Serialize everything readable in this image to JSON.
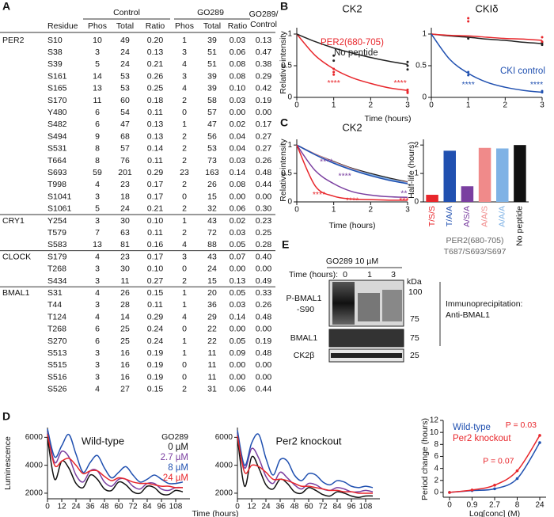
{
  "panel_labels": [
    "A",
    "B",
    "C",
    "D",
    "E"
  ],
  "table": {
    "header": {
      "control": "Control",
      "go289": "GO289",
      "ratio_header": [
        "GO289/",
        "Control"
      ],
      "columns": [
        "Residue",
        "Phos",
        "Total",
        "Ratio",
        "Phos",
        "Total",
        "Ratio"
      ]
    },
    "groups": [
      {
        "name": "PER2",
        "rows": [
          [
            "S10",
            "10",
            "49",
            "0.20",
            "1",
            "39",
            "0.03",
            "0.13"
          ],
          [
            "S38",
            "3",
            "24",
            "0.13",
            "3",
            "51",
            "0.06",
            "0.47"
          ],
          [
            "S39",
            "5",
            "24",
            "0.21",
            "4",
            "51",
            "0.08",
            "0.38"
          ],
          [
            "S161",
            "14",
            "53",
            "0.26",
            "3",
            "39",
            "0.08",
            "0.29"
          ],
          [
            "S165",
            "13",
            "53",
            "0.25",
            "4",
            "39",
            "0.10",
            "0.42"
          ],
          [
            "S170",
            "11",
            "60",
            "0.18",
            "2",
            "58",
            "0.03",
            "0.19"
          ],
          [
            "Y480",
            "6",
            "54",
            "0.11",
            "0",
            "57",
            "0.00",
            "0.00"
          ],
          [
            "S482",
            "6",
            "47",
            "0.13",
            "1",
            "47",
            "0.02",
            "0.17"
          ],
          [
            "S494",
            "9",
            "68",
            "0.13",
            "2",
            "56",
            "0.04",
            "0.27"
          ],
          [
            "S531",
            "8",
            "57",
            "0.14",
            "2",
            "53",
            "0.04",
            "0.27"
          ],
          [
            "T664",
            "8",
            "76",
            "0.11",
            "2",
            "73",
            "0.03",
            "0.26"
          ],
          [
            "S693",
            "59",
            "201",
            "0.29",
            "23",
            "163",
            "0.14",
            "0.48"
          ],
          [
            "T998",
            "4",
            "23",
            "0.17",
            "2",
            "26",
            "0.08",
            "0.44"
          ],
          [
            "S1041",
            "3",
            "18",
            "0.17",
            "0",
            "15",
            "0.00",
            "0.00"
          ],
          [
            "S1061",
            "5",
            "24",
            "0.21",
            "2",
            "32",
            "0.06",
            "0.30"
          ]
        ]
      },
      {
        "name": "CRY1",
        "rows": [
          [
            "Y254",
            "3",
            "30",
            "0.10",
            "1",
            "43",
            "0.02",
            "0.23"
          ],
          [
            "T579",
            "7",
            "63",
            "0.11",
            "2",
            "72",
            "0.03",
            "0.25"
          ],
          [
            "S583",
            "13",
            "81",
            "0.16",
            "4",
            "88",
            "0.05",
            "0.28"
          ]
        ]
      },
      {
        "name": "CLOCK",
        "rows": [
          [
            "S179",
            "4",
            "23",
            "0.17",
            "3",
            "43",
            "0.07",
            "0.40"
          ],
          [
            "T268",
            "3",
            "30",
            "0.10",
            "0",
            "24",
            "0.00",
            "0.00"
          ],
          [
            "S434",
            "3",
            "11",
            "0.27",
            "2",
            "15",
            "0.13",
            "0.49"
          ]
        ]
      },
      {
        "name": "BMAL1",
        "rows": [
          [
            "S31",
            "4",
            "26",
            "0.15",
            "1",
            "20",
            "0.05",
            "0.33"
          ],
          [
            "T44",
            "3",
            "28",
            "0.11",
            "1",
            "36",
            "0.03",
            "0.26"
          ],
          [
            "T124",
            "4",
            "14",
            "0.29",
            "4",
            "29",
            "0.14",
            "0.48"
          ],
          [
            "T268",
            "6",
            "25",
            "0.24",
            "0",
            "22",
            "0.00",
            "0.00"
          ],
          [
            "S270",
            "6",
            "25",
            "0.24",
            "1",
            "22",
            "0.05",
            "0.19"
          ],
          [
            "S513",
            "3",
            "16",
            "0.19",
            "1",
            "11",
            "0.09",
            "0.48"
          ],
          [
            "S515",
            "3",
            "16",
            "0.19",
            "0",
            "11",
            "0.00",
            "0.00"
          ],
          [
            "S516",
            "3",
            "16",
            "0.19",
            "0",
            "11",
            "0.00",
            "0.00"
          ],
          [
            "S526",
            "4",
            "27",
            "0.15",
            "2",
            "31",
            "0.06",
            "0.44"
          ]
        ]
      }
    ]
  },
  "blot": {
    "treatment": "GO289 10 µM",
    "time_label": "Time (hours):",
    "lanes": [
      "0",
      "1",
      "3"
    ],
    "units": "kDa",
    "rows": [
      {
        "name": [
          "P-BMAL1",
          "-S90"
        ],
        "markers": [
          "100",
          "75"
        ]
      },
      {
        "name": [
          "BMAL1"
        ],
        "markers": [
          "75"
        ]
      },
      {
        "name": [
          "CK2β"
        ],
        "markers": [
          "25"
        ]
      }
    ],
    "note": [
      "Immunoprecipitation:",
      "Anti-BMAL1"
    ]
  },
  "chart_data": [
    {
      "type": "line",
      "title": "CK2",
      "xlabel": "Time (hours)",
      "ylabel": "Relative intensity",
      "x": [
        0,
        0.5,
        1,
        1.5,
        2,
        2.5,
        3
      ],
      "xlim": [
        0,
        3
      ],
      "xticks": [
        0,
        1,
        2,
        3
      ],
      "ylim": [
        0,
        1.1
      ],
      "yticks": [
        0,
        0.5,
        1
      ],
      "series": [
        {
          "name": "PER2(680-705)",
          "color": "#e8262b",
          "values": [
            1,
            0.66,
            0.45,
            0.31,
            0.22,
            0.15,
            0.11
          ],
          "points": {
            "x": [
              1,
              1,
              1,
              3,
              3,
              3
            ],
            "y": [
              0.45,
              0.4,
              0.36,
              0.12,
              0.09,
              0.07
            ]
          }
        },
        {
          "name": "No peptide",
          "color": "#222222",
          "values": [
            1,
            0.88,
            0.78,
            0.7,
            0.63,
            0.57,
            0.52
          ],
          "points": {
            "x": [
              1,
              1,
              3,
              3,
              3
            ],
            "y": [
              0.66,
              0.58,
              0.56,
              0.5,
              0.44
            ]
          }
        }
      ],
      "annotations": [
        {
          "text": "****",
          "color": "#e8262b",
          "x": 1,
          "y": 0.22
        },
        {
          "text": "****",
          "color": "#e8262b",
          "x": 2.8,
          "y": 0.22
        }
      ]
    },
    {
      "type": "line",
      "title": "CKIδ",
      "x": [
        0,
        0.5,
        1,
        1.5,
        2,
        2.5,
        3
      ],
      "xlim": [
        0,
        3
      ],
      "xticks": [
        0,
        1,
        2,
        3
      ],
      "ylim": [
        0,
        1.1
      ],
      "yticks": [
        0,
        0.5,
        1
      ],
      "series": [
        {
          "color": "#222222",
          "values": [
            1,
            0.97,
            0.95,
            0.92,
            0.9,
            0.87,
            0.85
          ],
          "points": {
            "x": [
              1,
              3,
              3
            ],
            "y": [
              0.93,
              0.86,
              0.83
            ]
          }
        },
        {
          "color": "#e8262b",
          "values": [
            1,
            0.98,
            0.97,
            0.95,
            0.93,
            0.92,
            0.9
          ],
          "points": {
            "x": [
              1,
              1,
              3,
              3
            ],
            "y": [
              1.25,
              1.2,
              0.95,
              0.88
            ]
          }
        },
        {
          "name": "CKI control",
          "color": "#2050b0",
          "values": [
            1,
            0.6,
            0.38,
            0.24,
            0.16,
            0.11,
            0.08
          ],
          "points": {
            "x": [
              1,
              1,
              3,
              3
            ],
            "y": [
              0.4,
              0.35,
              0.08,
              0.1
            ]
          }
        }
      ],
      "annotations": [
        {
          "text": "****",
          "color": "#2050b0",
          "x": 1,
          "y": 0.2
        },
        {
          "text": "****",
          "color": "#2050b0",
          "x": 2.85,
          "y": 0.2
        }
      ]
    },
    {
      "type": "line",
      "title": "CK2",
      "xlabel": "Time (hours)",
      "ylabel": "Relative intensity",
      "x": [
        0,
        0.5,
        1,
        1.5,
        2,
        2.5,
        3
      ],
      "xlim": [
        0,
        3
      ],
      "xticks": [
        0,
        1,
        2,
        3
      ],
      "ylim": [
        0,
        1.1
      ],
      "yticks": [
        0,
        0.5,
        1
      ],
      "series": [
        {
          "color": "#222222",
          "values": [
            1,
            0.84,
            0.71,
            0.59,
            0.5,
            0.42,
            0.35
          ]
        },
        {
          "color": "#f08a8a",
          "values": [
            1,
            0.84,
            0.7,
            0.58,
            0.48,
            0.4,
            0.34
          ]
        },
        {
          "color": "#7fb2e5",
          "values": [
            1,
            0.83,
            0.69,
            0.57,
            0.48,
            0.4,
            0.33
          ]
        },
        {
          "color": "#2050b0",
          "values": [
            1,
            0.83,
            0.68,
            0.56,
            0.46,
            0.38,
            0.32
          ]
        },
        {
          "color": "#7a3fa0",
          "values": [
            1,
            0.55,
            0.32,
            0.18,
            0.12,
            0.09,
            0.08
          ]
        },
        {
          "color": "#e8262b",
          "values": [
            1,
            0.28,
            0.1,
            0.05,
            0.04,
            0.03,
            0.03
          ]
        }
      ],
      "annotations": [
        {
          "text": "****",
          "color": "#7a3fa0",
          "x": 0.8,
          "y": 0.7
        },
        {
          "text": "****",
          "color": "#7a3fa0",
          "x": 1.3,
          "y": 0.45
        },
        {
          "text": "****",
          "color": "#e8262b",
          "x": 0.6,
          "y": 0.12
        },
        {
          "text": "****",
          "color": "#e8262b",
          "x": 1.5,
          "y": 0.02
        },
        {
          "text": "**",
          "color": "#7a3fa0",
          "x": 2.9,
          "y": 0.14
        },
        {
          "text": "***",
          "color": "#e8262b",
          "x": 2.9,
          "y": 0.02
        }
      ]
    },
    {
      "type": "bar",
      "ylabel": "Half-life (hours)",
      "categories": [
        "T/S/S",
        "T/A/A",
        "A/S/A",
        "A/A/S",
        "A/A/A",
        "No peptide"
      ],
      "values": [
        0.25,
        1.8,
        0.55,
        1.9,
        1.88,
        2.0
      ],
      "colors": [
        "#e8262b",
        "#2050b0",
        "#7a3fa0",
        "#f08a8a",
        "#7fb2e5",
        "#111111"
      ],
      "ylim": [
        0,
        2.2
      ],
      "yticks": [
        0,
        1,
        2
      ],
      "group_labels": [
        "PER2(680-705)",
        "T687/S693/S697"
      ]
    },
    {
      "type": "line",
      "title": "Wild-type",
      "ylabel": "Luminescence",
      "legend_title": "GO289",
      "x": [
        0,
        6,
        12,
        18,
        24,
        30,
        36,
        42,
        48,
        54,
        60,
        66,
        72,
        78,
        84,
        90,
        96,
        102,
        108,
        114
      ],
      "xlim": [
        0,
        120
      ],
      "xticks": [
        0,
        12,
        24,
        36,
        48,
        60,
        72,
        84,
        96,
        108
      ],
      "ylim": [
        1600,
        6700
      ],
      "yticks": [
        2000,
        4000,
        6000
      ],
      "series": [
        {
          "name": "0 µM",
          "color": "#111111",
          "values": [
            6000,
            3000,
            4300,
            3800,
            2700,
            2400,
            3300,
            3000,
            2300,
            2200,
            2800,
            2600,
            2100,
            2000,
            2500,
            2400,
            1950,
            1900,
            2200,
            2100
          ]
        },
        {
          "name": "2.7 µM",
          "color": "#7a3fa0",
          "values": [
            6400,
            4200,
            5000,
            4600,
            3300,
            2800,
            3600,
            3600,
            2800,
            2500,
            3000,
            3000,
            2500,
            2300,
            2700,
            2700,
            2300,
            2200,
            2400,
            2400
          ]
        },
        {
          "name": "8 µM",
          "color": "#2050b0",
          "values": [
            6600,
            4600,
            5400,
            6200,
            4800,
            3500,
            4200,
            4700,
            3800,
            3100,
            3500,
            3900,
            3300,
            2800,
            3000,
            3300,
            3000,
            2700,
            2700,
            2800
          ]
        },
        {
          "name": "24 µM",
          "color": "#e8262b",
          "values": [
            6200,
            4000,
            4300,
            4500,
            4000,
            3400,
            3600,
            3600,
            3200,
            2900,
            3100,
            3000,
            2800,
            2700,
            2700,
            2600,
            2500,
            2500,
            2400,
            2400
          ]
        }
      ]
    },
    {
      "type": "line",
      "title": "Per2 knockout",
      "xlabel": "Time (hours)",
      "x": [
        0,
        6,
        12,
        18,
        24,
        30,
        36,
        42,
        48,
        54,
        60,
        66,
        72,
        78,
        84,
        90,
        96,
        102,
        108,
        114
      ],
      "xlim": [
        0,
        120
      ],
      "xticks": [
        0,
        12,
        24,
        36,
        48,
        60,
        72,
        84,
        96,
        108
      ],
      "ylim": [
        1600,
        6700
      ],
      "yticks": [
        2000,
        4000,
        6000
      ],
      "series": [
        {
          "color": "#111111",
          "values": [
            6000,
            2500,
            4600,
            3800,
            2600,
            2300,
            3000,
            2700,
            2100,
            2000,
            2400,
            2200,
            1900,
            1800,
            2100,
            2000,
            1800,
            1700,
            1800,
            1800
          ]
        },
        {
          "color": "#7a3fa0",
          "values": [
            6300,
            3800,
            5200,
            4500,
            3200,
            2700,
            3500,
            3100,
            2600,
            2300,
            2700,
            2600,
            2300,
            2200,
            2400,
            2300,
            2100,
            2100,
            2200,
            2100
          ]
        },
        {
          "color": "#2050b0",
          "values": [
            6500,
            4000,
            5600,
            6200,
            4500,
            3300,
            4400,
            4300,
            3300,
            2900,
            3400,
            3300,
            2800,
            2600,
            2900,
            2800,
            2500,
            2400,
            2500,
            2400
          ]
        },
        {
          "color": "#e8262b",
          "values": [
            6100,
            3500,
            4000,
            3900,
            3500,
            3000,
            3000,
            2900,
            2700,
            2500,
            2500,
            2400,
            2300,
            2200,
            2200,
            2100,
            2100,
            2000,
            2000,
            2000
          ]
        }
      ]
    },
    {
      "type": "line",
      "xlabel": "Log[conc] (M)",
      "ylabel": "Period change (hours)",
      "categories": [
        "0",
        "0.9",
        "2.7",
        "8",
        "24"
      ],
      "ylim": [
        -0.8,
        12
      ],
      "yticks": [
        0,
        2,
        4,
        6,
        8,
        10,
        12
      ],
      "series": [
        {
          "name": "Wild-type",
          "color": "#2050b0",
          "values": [
            0,
            0.3,
            0.6,
            2.3,
            8.3
          ]
        },
        {
          "name": "Per2 knockout",
          "color": "#e8262b",
          "values": [
            0,
            0.4,
            1.2,
            3.6,
            9.5
          ]
        }
      ],
      "annotations": [
        {
          "text": "P = 0.07",
          "color": "#e8262b",
          "x": "8",
          "y": 5.2
        },
        {
          "text": "P = 0.03",
          "color": "#e8262b",
          "x": "24",
          "y": 11.2
        }
      ]
    }
  ]
}
